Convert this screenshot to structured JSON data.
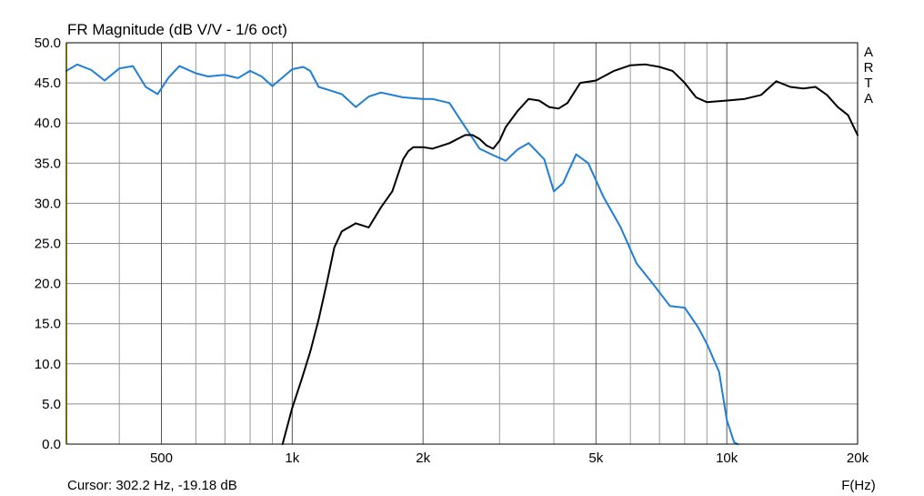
{
  "chart_data": {
    "type": "line",
    "title": "FR Magnitude (dB V/V - 1/6 oct)",
    "xlabel": "F(Hz)",
    "ylabel": "",
    "x_scale": "log",
    "xlim": [
      302.2,
      20000
    ],
    "ylim": [
      0,
      50
    ],
    "grid": true,
    "y_ticks": [
      0,
      5,
      10,
      15,
      20,
      25,
      30,
      35,
      40,
      45,
      50
    ],
    "y_tick_labels": [
      "0.0",
      "5.0",
      "10.0",
      "15.0",
      "20.0",
      "25.0",
      "30.0",
      "35.0",
      "40.0",
      "45.0",
      "50.0"
    ],
    "x_ticks": [
      500,
      1000,
      2000,
      5000,
      10000,
      20000
    ],
    "x_tick_labels": [
      "500",
      "1k",
      "2k",
      "5k",
      "10k",
      "20k"
    ],
    "x_minor_grid": [
      400,
      600,
      700,
      800,
      900,
      3000,
      4000,
      6000,
      7000,
      8000,
      9000
    ],
    "cursor_text": "Cursor: 302.2 Hz, -19.18 dB",
    "cursor_x": 302.2,
    "cursor_color": "#e8d830",
    "watermark": [
      "A",
      "R",
      "T",
      "A"
    ],
    "series": [
      {
        "color": "#1f7fd6",
        "x": [
          302,
          320,
          345,
          370,
          400,
          430,
          460,
          490,
          520,
          550,
          600,
          640,
          700,
          750,
          800,
          850,
          900,
          1000,
          1060,
          1100,
          1150,
          1200,
          1300,
          1400,
          1500,
          1600,
          1800,
          2000,
          2100,
          2300,
          2500,
          2700,
          2900,
          3100,
          3300,
          3500,
          3800,
          4000,
          4200,
          4500,
          4800,
          5200,
          5700,
          6200,
          6800,
          7400,
          8000,
          8600,
          9000,
          9600,
          10000,
          10400,
          10600
        ],
        "y": [
          46.5,
          47.3,
          46.6,
          45.3,
          46.8,
          47.1,
          44.5,
          43.6,
          45.7,
          47.1,
          46.2,
          45.8,
          46.0,
          45.6,
          46.5,
          45.8,
          44.6,
          46.7,
          47.0,
          46.5,
          44.5,
          44.2,
          43.6,
          42.0,
          43.3,
          43.8,
          43.2,
          43.0,
          43.0,
          42.5,
          39.5,
          36.8,
          36.0,
          35.3,
          36.7,
          37.5,
          35.5,
          31.5,
          32.5,
          36.1,
          35.0,
          30.8,
          27.0,
          22.5,
          19.8,
          17.2,
          17.0,
          14.5,
          12.5,
          9.0,
          3.0,
          0.2,
          0.0
        ]
      },
      {
        "color": "#000000",
        "x": [
          950,
          1000,
          1050,
          1100,
          1150,
          1200,
          1250,
          1300,
          1400,
          1500,
          1600,
          1700,
          1800,
          1850,
          1900,
          2000,
          2100,
          2300,
          2500,
          2600,
          2700,
          2800,
          2900,
          3000,
          3100,
          3300,
          3500,
          3700,
          3900,
          4100,
          4300,
          4600,
          5000,
          5500,
          6000,
          6500,
          7000,
          7500,
          8000,
          8500,
          9000,
          10000,
          11000,
          12000,
          13000,
          14000,
          15000,
          16000,
          17000,
          18000,
          19000,
          20000
        ],
        "y": [
          0.0,
          4.5,
          8.0,
          11.5,
          15.5,
          20.0,
          24.5,
          26.5,
          27.5,
          27.0,
          29.5,
          31.5,
          35.5,
          36.5,
          37.0,
          37.0,
          36.8,
          37.5,
          38.5,
          38.5,
          38.0,
          37.2,
          36.8,
          37.8,
          39.5,
          41.5,
          43.0,
          42.8,
          42.0,
          41.8,
          42.5,
          45.0,
          45.3,
          46.5,
          47.2,
          47.3,
          47.0,
          46.5,
          45.0,
          43.2,
          42.6,
          42.8,
          43.0,
          43.5,
          45.2,
          44.5,
          44.3,
          44.5,
          43.5,
          42.0,
          41.0,
          38.5
        ]
      }
    ]
  }
}
